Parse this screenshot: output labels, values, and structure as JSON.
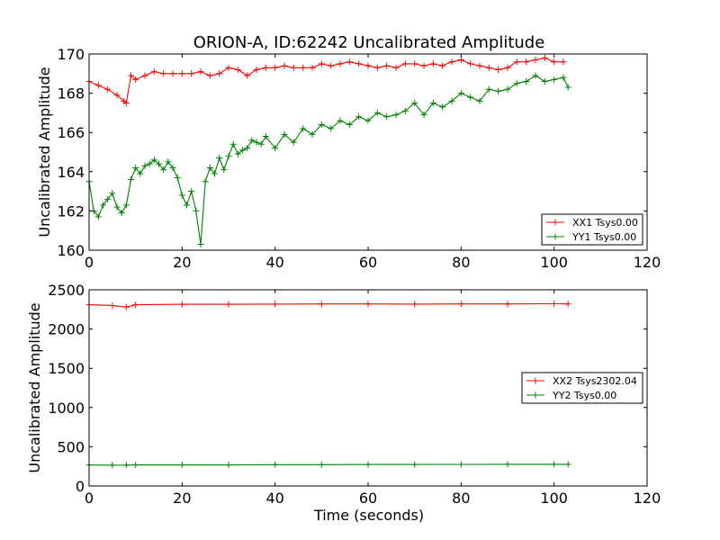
{
  "figure": {
    "title": "ORION-A, ID:62242 Uncalibrated Amplitude",
    "xlabel": "Time (seconds)"
  },
  "chart_data": [
    {
      "type": "line",
      "title": "ORION-A, ID:62242 Uncalibrated Amplitude",
      "xlabel": "",
      "ylabel": "Uncalibrated Amplitude",
      "xlim": [
        0,
        120
      ],
      "ylim": [
        160,
        170
      ],
      "xticks": [
        "0",
        "20",
        "40",
        "60",
        "80",
        "100",
        "120"
      ],
      "yticks": [
        "160",
        "162",
        "164",
        "166",
        "168",
        "170"
      ],
      "legend_position": "lower-right",
      "marker": "+",
      "series": [
        {
          "name": "XX1 Tsys0.00",
          "color": "#ff0000",
          "x": [
            0,
            2,
            4,
            6,
            7.5,
            8,
            9,
            10,
            12,
            14,
            16,
            18,
            20,
            22,
            24,
            26,
            28,
            30,
            32,
            34,
            36,
            38,
            40,
            42,
            44,
            46,
            48,
            50,
            52,
            54,
            56,
            58,
            60,
            62,
            64,
            66,
            68,
            70,
            72,
            74,
            76,
            78,
            80,
            82,
            84,
            86,
            88,
            90,
            92,
            94,
            96,
            98,
            100,
            102
          ],
          "y": [
            168.6,
            168.4,
            168.2,
            167.9,
            167.6,
            167.5,
            168.9,
            168.7,
            168.9,
            169.1,
            169.0,
            169.0,
            169.0,
            169.0,
            169.1,
            168.9,
            169.0,
            169.3,
            169.2,
            168.9,
            169.2,
            169.3,
            169.3,
            169.4,
            169.3,
            169.3,
            169.3,
            169.5,
            169.4,
            169.5,
            169.6,
            169.5,
            169.4,
            169.3,
            169.4,
            169.3,
            169.5,
            169.5,
            169.4,
            169.5,
            169.4,
            169.6,
            169.7,
            169.5,
            169.4,
            169.3,
            169.2,
            169.3,
            169.6,
            169.6,
            169.7,
            169.8,
            169.6,
            169.6
          ]
        },
        {
          "name": "YY1 Tsys0.00",
          "color": "#008000",
          "x": [
            0,
            1,
            2,
            3,
            4,
            5,
            6,
            7,
            8,
            9,
            10,
            11,
            12,
            13,
            14,
            15,
            16,
            17,
            18,
            19,
            20,
            21,
            22,
            23,
            24,
            25,
            26,
            27,
            28,
            29,
            30,
            31,
            32,
            33,
            34,
            35,
            36,
            37,
            38,
            40,
            42,
            44,
            46,
            48,
            50,
            52,
            54,
            56,
            58,
            60,
            62,
            64,
            66,
            68,
            70,
            72,
            74,
            76,
            78,
            80,
            82,
            84,
            86,
            88,
            90,
            92,
            94,
            96,
            98,
            100,
            102,
            103
          ],
          "y": [
            163.5,
            162.0,
            161.7,
            162.3,
            162.6,
            162.9,
            162.2,
            161.9,
            162.3,
            163.6,
            164.2,
            163.9,
            164.3,
            164.4,
            164.6,
            164.4,
            164.1,
            164.5,
            164.2,
            163.7,
            162.8,
            162.3,
            163.0,
            162.0,
            160.3,
            163.5,
            164.2,
            163.9,
            164.7,
            164.1,
            164.8,
            165.4,
            164.9,
            165.1,
            165.2,
            165.6,
            165.5,
            165.4,
            165.8,
            165.2,
            165.9,
            165.5,
            166.2,
            165.9,
            166.4,
            166.2,
            166.6,
            166.4,
            166.8,
            166.6,
            167.0,
            166.8,
            166.9,
            167.1,
            167.5,
            166.9,
            167.5,
            167.3,
            167.6,
            168.0,
            167.8,
            167.6,
            168.2,
            168.1,
            168.2,
            168.5,
            168.6,
            168.9,
            168.6,
            168.7,
            168.8,
            168.3
          ]
        }
      ]
    },
    {
      "type": "line",
      "title": "",
      "xlabel": "Time (seconds)",
      "ylabel": "Uncalibrated Amplitude",
      "xlim": [
        0,
        120
      ],
      "ylim": [
        0,
        2500
      ],
      "xticks": [
        "0",
        "20",
        "40",
        "60",
        "80",
        "100",
        "120"
      ],
      "yticks": [
        "0",
        "500",
        "1000",
        "1500",
        "2000",
        "2500"
      ],
      "legend_position": "center-right",
      "marker": "+",
      "series": [
        {
          "name": "XX2 Tsys2302.04",
          "color": "#ff0000",
          "x": [
            0,
            5,
            8,
            10,
            20,
            30,
            40,
            50,
            60,
            70,
            80,
            90,
            100,
            103
          ],
          "y": [
            2310,
            2300,
            2280,
            2310,
            2315,
            2315,
            2318,
            2320,
            2320,
            2318,
            2320,
            2320,
            2322,
            2320
          ]
        },
        {
          "name": "YY2 Tsys0.00",
          "color": "#008000",
          "x": [
            0,
            5,
            8,
            10,
            20,
            30,
            40,
            50,
            60,
            70,
            80,
            90,
            100,
            103
          ],
          "y": [
            268,
            265,
            266,
            270,
            268,
            268,
            272,
            272,
            274,
            274,
            275,
            276,
            276,
            276
          ]
        }
      ]
    }
  ]
}
